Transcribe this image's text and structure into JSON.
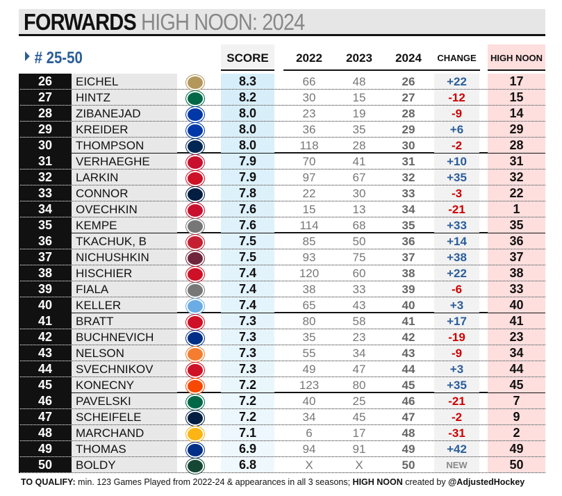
{
  "title": {
    "bold": "FORWARDS",
    "rest": "HIGH NOON: 2024"
  },
  "subtitle": "# 25-50",
  "headers": {
    "score": "SCORE",
    "y2022": "2022",
    "y2023": "2023",
    "y2024": "2024",
    "change": "CHANGE",
    "high_noon": "HIGH NOON"
  },
  "colors": {
    "positive": "#2a5d9a",
    "negative": "#cc0000",
    "new": "#888888",
    "score_bg": "#d6eefa",
    "high_noon_bg": "#ffdede"
  },
  "rows": [
    {
      "rank": "26",
      "name": "EICHEL",
      "team": "vegas-golden-knights-logo",
      "tc": "#b4975a",
      "score": "8.3",
      "y2022": "66",
      "y2023": "48",
      "y2024": "26",
      "change": "+22",
      "high_noon": "17"
    },
    {
      "rank": "27",
      "name": "HINTZ",
      "team": "dallas-stars-logo",
      "tc": "#006847",
      "score": "8.2",
      "y2022": "30",
      "y2023": "15",
      "y2024": "27",
      "change": "-12",
      "high_noon": "15"
    },
    {
      "rank": "28",
      "name": "ZIBANEJAD",
      "team": "new-york-rangers-logo",
      "tc": "#0038a8",
      "score": "8.0",
      "y2022": "23",
      "y2023": "19",
      "y2024": "28",
      "change": "-9",
      "high_noon": "14"
    },
    {
      "rank": "29",
      "name": "KREIDER",
      "team": "new-york-rangers-logo",
      "tc": "#0038a8",
      "score": "8.0",
      "y2022": "36",
      "y2023": "35",
      "y2024": "29",
      "change": "+6",
      "high_noon": "29"
    },
    {
      "rank": "30",
      "name": "THOMPSON",
      "team": "buffalo-sabres-logo",
      "tc": "#002654",
      "score": "8.0",
      "y2022": "118",
      "y2023": "28",
      "y2024": "30",
      "change": "-2",
      "high_noon": "28"
    },
    {
      "rank": "31",
      "name": "VERHAEGHE",
      "team": "florida-panthers-logo",
      "tc": "#c8102e",
      "score": "7.9",
      "y2022": "70",
      "y2023": "41",
      "y2024": "31",
      "change": "+10",
      "high_noon": "31"
    },
    {
      "rank": "32",
      "name": "LARKIN",
      "team": "detroit-red-wings-logo",
      "tc": "#ce1126",
      "score": "7.9",
      "y2022": "97",
      "y2023": "67",
      "y2024": "32",
      "change": "+35",
      "high_noon": "32"
    },
    {
      "rank": "33",
      "name": "CONNOR",
      "team": "winnipeg-jets-logo",
      "tc": "#041e42",
      "score": "7.8",
      "y2022": "22",
      "y2023": "30",
      "y2024": "33",
      "change": "-3",
      "high_noon": "22"
    },
    {
      "rank": "34",
      "name": "OVECHKIN",
      "team": "washington-capitals-logo",
      "tc": "#c8102e",
      "score": "7.6",
      "y2022": "15",
      "y2023": "13",
      "y2024": "34",
      "change": "-21",
      "high_noon": "1"
    },
    {
      "rank": "35",
      "name": "KEMPE",
      "team": "los-angeles-kings-logo",
      "tc": "#777777",
      "score": "7.6",
      "y2022": "114",
      "y2023": "68",
      "y2024": "35",
      "change": "+33",
      "high_noon": "35"
    },
    {
      "rank": "36",
      "name": "TKACHUK, B",
      "team": "ottawa-senators-logo",
      "tc": "#c52032",
      "score": "7.5",
      "y2022": "85",
      "y2023": "50",
      "y2024": "36",
      "change": "+14",
      "high_noon": "36"
    },
    {
      "rank": "37",
      "name": "NICHUSHKIN",
      "team": "colorado-avalanche-logo",
      "tc": "#6f263d",
      "score": "7.5",
      "y2022": "93",
      "y2023": "75",
      "y2024": "37",
      "change": "+38",
      "high_noon": "37"
    },
    {
      "rank": "38",
      "name": "HISCHIER",
      "team": "new-jersey-devils-logo",
      "tc": "#ce1126",
      "score": "7.4",
      "y2022": "120",
      "y2023": "60",
      "y2024": "38",
      "change": "+22",
      "high_noon": "38"
    },
    {
      "rank": "39",
      "name": "FIALA",
      "team": "los-angeles-kings-logo",
      "tc": "#777777",
      "score": "7.4",
      "y2022": "38",
      "y2023": "33",
      "y2024": "39",
      "change": "-6",
      "high_noon": "33"
    },
    {
      "rank": "40",
      "name": "KELLER",
      "team": "utah-hockey-club-logo",
      "tc": "#6cace4",
      "score": "7.4",
      "y2022": "65",
      "y2023": "43",
      "y2024": "40",
      "change": "+3",
      "high_noon": "40"
    },
    {
      "rank": "41",
      "name": "BRATT",
      "team": "new-jersey-devils-logo",
      "tc": "#ce1126",
      "score": "7.3",
      "y2022": "80",
      "y2023": "58",
      "y2024": "41",
      "change": "+17",
      "high_noon": "41"
    },
    {
      "rank": "42",
      "name": "BUCHNEVICH",
      "team": "st-louis-blues-logo",
      "tc": "#002f87",
      "score": "7.3",
      "y2022": "35",
      "y2023": "23",
      "y2024": "42",
      "change": "-19",
      "high_noon": "23"
    },
    {
      "rank": "43",
      "name": "NELSON",
      "team": "new-york-islanders-logo",
      "tc": "#f47d30",
      "score": "7.3",
      "y2022": "55",
      "y2023": "34",
      "y2024": "43",
      "change": "-9",
      "high_noon": "34"
    },
    {
      "rank": "44",
      "name": "SVECHNIKOV",
      "team": "carolina-hurricanes-logo",
      "tc": "#ce1126",
      "score": "7.3",
      "y2022": "49",
      "y2023": "47",
      "y2024": "44",
      "change": "+3",
      "high_noon": "44"
    },
    {
      "rank": "45",
      "name": "KONECNY",
      "team": "philadelphia-flyers-logo",
      "tc": "#f74902",
      "score": "7.2",
      "y2022": "123",
      "y2023": "80",
      "y2024": "45",
      "change": "+35",
      "high_noon": "45"
    },
    {
      "rank": "46",
      "name": "PAVELSKI",
      "team": "dallas-stars-logo",
      "tc": "#006847",
      "score": "7.2",
      "y2022": "40",
      "y2023": "25",
      "y2024": "46",
      "change": "-21",
      "high_noon": "7"
    },
    {
      "rank": "47",
      "name": "SCHEIFELE",
      "team": "winnipeg-jets-logo",
      "tc": "#041e42",
      "score": "7.2",
      "y2022": "34",
      "y2023": "45",
      "y2024": "47",
      "change": "-2",
      "high_noon": "9"
    },
    {
      "rank": "48",
      "name": "MARCHAND",
      "team": "boston-bruins-logo",
      "tc": "#fcb514",
      "score": "7.1",
      "y2022": "6",
      "y2023": "17",
      "y2024": "48",
      "change": "-31",
      "high_noon": "2"
    },
    {
      "rank": "49",
      "name": "THOMAS",
      "team": "st-louis-blues-logo",
      "tc": "#002f87",
      "score": "6.9",
      "y2022": "94",
      "y2023": "91",
      "y2024": "49",
      "change": "+42",
      "high_noon": "49"
    },
    {
      "rank": "50",
      "name": "BOLDY",
      "team": "minnesota-wild-logo",
      "tc": "#154734",
      "score": "6.8",
      "y2022": "X",
      "y2023": "X",
      "y2024": "50",
      "change": "NEW",
      "high_noon": "50"
    }
  ],
  "footer": {
    "label": "TO QUALIFY:",
    "text": " min. 123 Games Played from 2022-24 & appearances in all 3 seasons; ",
    "hn": "HIGH NOON",
    "created": " created by ",
    "handle": "@AdjustedHockey"
  }
}
